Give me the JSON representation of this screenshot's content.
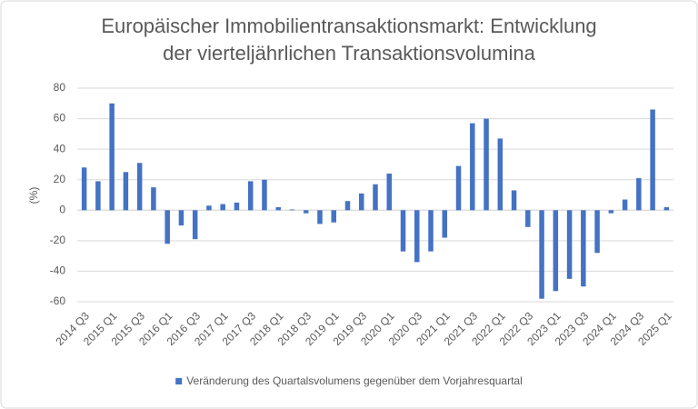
{
  "chart_data": {
    "type": "bar",
    "title": "Europäischer Immobilientransaktionsmarkt: Entwicklung der vierteljährlichen Transaktionsvolumina",
    "y_label": "(%)",
    "categories": [
      "2014 Q3",
      null,
      "2015 Q1",
      null,
      "2015 Q3",
      null,
      "2016 Q1",
      null,
      "2016 Q3",
      null,
      "2017 Q1",
      null,
      "2017 Q3",
      null,
      "2018 Q1",
      null,
      "2018 Q3",
      null,
      "2019 Q1",
      null,
      "2019 Q3",
      null,
      "2020 Q1",
      null,
      "2020 Q3",
      null,
      "2021 Q1",
      null,
      "2021 Q3",
      null,
      "2022 Q1",
      null,
      "2022 Q3",
      null,
      "2023 Q1",
      null,
      "2023 Q3",
      null,
      "2024 Q1",
      null,
      "2024 Q3",
      null,
      "2025 Q1"
    ],
    "series": [
      {
        "name": "Veränderung des Quartalsvolumens gegenüber dem Vorjahresquartal",
        "color": "#4472c4",
        "values": [
          28,
          19,
          70,
          25,
          31,
          15,
          -22,
          -10,
          -19,
          3,
          4,
          5,
          19,
          20,
          2,
          0.5,
          -2,
          -9,
          -8,
          6,
          11,
          17,
          24,
          -27,
          -34,
          -27,
          -18,
          29,
          57,
          60,
          47,
          13,
          -11,
          -58,
          -53,
          -45,
          -50,
          -28,
          -2,
          7,
          21,
          66,
          2
        ]
      }
    ],
    "ylim": [
      -60,
      80
    ],
    "yticks": [
      {
        "value": -60,
        "label": "-60"
      },
      {
        "value": -40,
        "label": "-40"
      },
      {
        "value": -20,
        "label": "-20"
      },
      0,
      20,
      40,
      60,
      80
    ],
    "grid": true,
    "legend": "bottom"
  }
}
